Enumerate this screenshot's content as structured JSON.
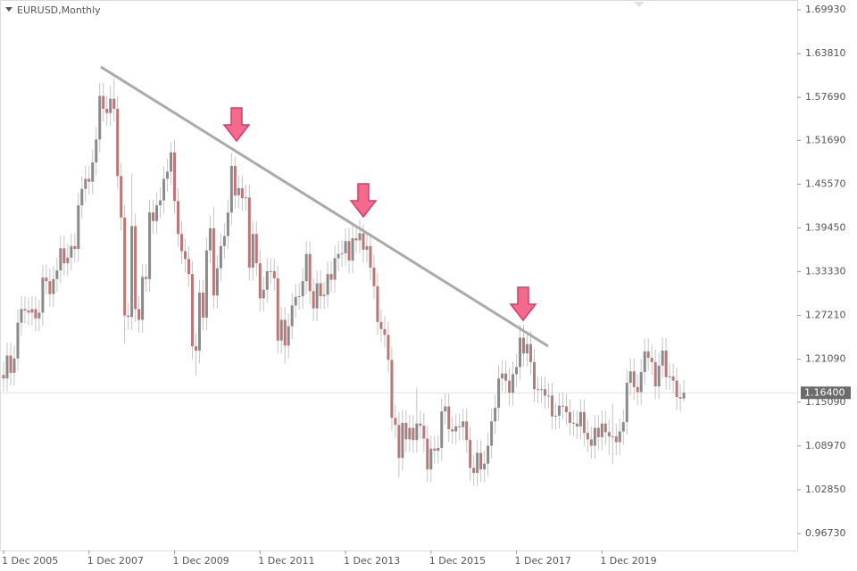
{
  "chart_data": {
    "type": "candlestick",
    "title": "EURUSD,Monthly",
    "up_color": "#8a8a8a",
    "down_color": "#c07575",
    "wick_color": "#c4c4c4",
    "ylim": [
      0.9436,
      1.713
    ],
    "yticks": [
      {
        "value": 1.6993,
        "label": "1.69930"
      },
      {
        "value": 1.6381,
        "label": "1.63810"
      },
      {
        "value": 1.5769,
        "label": "1.57690"
      },
      {
        "value": 1.5169,
        "label": "1.51690"
      },
      {
        "value": 1.4557,
        "label": "1.45570"
      },
      {
        "value": 1.3945,
        "label": "1.39450"
      },
      {
        "value": 1.3333,
        "label": "1.33330"
      },
      {
        "value": 1.2721,
        "label": "1.27210"
      },
      {
        "value": 1.2109,
        "label": "1.21090"
      },
      {
        "value": 1.1509,
        "label": "1.15090"
      },
      {
        "value": 1.0897,
        "label": "1.08970"
      },
      {
        "value": 1.0285,
        "label": "1.02850"
      },
      {
        "value": 0.9673,
        "label": "0.96730"
      }
    ],
    "last_price": {
      "value": 1.164,
      "label": "1.16400"
    },
    "categories": [
      "1 Dec 2005",
      null,
      null,
      null,
      null,
      null,
      null,
      null,
      null,
      null,
      null,
      null,
      null,
      null,
      null,
      null,
      null,
      null,
      null,
      null,
      null,
      null,
      null,
      null,
      "1 Dec 2007",
      null,
      null,
      null,
      null,
      null,
      null,
      null,
      null,
      null,
      null,
      null,
      null,
      null,
      null,
      null,
      null,
      null,
      null,
      null,
      null,
      null,
      null,
      null,
      "1 Dec 2009",
      null,
      null,
      null,
      null,
      null,
      null,
      null,
      null,
      null,
      null,
      null,
      null,
      null,
      null,
      null,
      null,
      null,
      null,
      null,
      null,
      null,
      null,
      null,
      "1 Dec 2011",
      null,
      null,
      null,
      null,
      null,
      null,
      null,
      null,
      null,
      null,
      null,
      null,
      null,
      null,
      null,
      null,
      null,
      null,
      null,
      null,
      null,
      null,
      null,
      "1 Dec 2013",
      null,
      null,
      null,
      null,
      null,
      null,
      null,
      null,
      null,
      null,
      null,
      null,
      null,
      null,
      null,
      null,
      null,
      null,
      null,
      null,
      null,
      null,
      null,
      "1 Dec 2015",
      null,
      null,
      null,
      null,
      null,
      null,
      null,
      null,
      null,
      null,
      null,
      null,
      null,
      null,
      null,
      null,
      null,
      null,
      null,
      null,
      null,
      null,
      null,
      "1 Dec 2017",
      null,
      null,
      null,
      null,
      null,
      null,
      null,
      null,
      null,
      null,
      null,
      null,
      null,
      null,
      null,
      null,
      null,
      null,
      null,
      null,
      null,
      null,
      null,
      "1 Dec 2019",
      null,
      null,
      null,
      null,
      null,
      null,
      null,
      null,
      null,
      null,
      null,
      null,
      null,
      null,
      null,
      null,
      null,
      null,
      null,
      null,
      null,
      null,
      null
    ],
    "ohlc": [
      [
        1.189,
        1.207,
        1.166,
        1.184
      ],
      [
        1.184,
        1.234,
        1.166,
        1.216
      ],
      [
        1.216,
        1.234,
        1.174,
        1.192
      ],
      [
        1.192,
        1.23,
        1.174,
        1.212
      ],
      [
        1.212,
        1.28,
        1.194,
        1.262
      ],
      [
        1.262,
        1.299,
        1.244,
        1.281
      ],
      [
        1.281,
        1.299,
        1.261,
        1.279
      ],
      [
        1.279,
        1.297,
        1.258,
        1.276
      ],
      [
        1.276,
        1.299,
        1.258,
        1.281
      ],
      [
        1.281,
        1.299,
        1.25,
        1.268
      ],
      [
        1.268,
        1.294,
        1.25,
        1.276
      ],
      [
        1.276,
        1.343,
        1.258,
        1.325
      ],
      [
        1.325,
        1.343,
        1.302,
        1.32
      ],
      [
        1.32,
        1.338,
        1.284,
        1.302
      ],
      [
        1.302,
        1.341,
        1.284,
        1.323
      ],
      [
        1.323,
        1.353,
        1.305,
        1.335
      ],
      [
        1.335,
        1.384,
        1.317,
        1.366
      ],
      [
        1.366,
        1.384,
        1.327,
        1.345
      ],
      [
        1.345,
        1.371,
        1.327,
        1.353
      ],
      [
        1.353,
        1.387,
        1.335,
        1.369
      ],
      [
        1.369,
        1.387,
        1.347,
        1.365
      ],
      [
        1.365,
        1.444,
        1.347,
        1.426
      ],
      [
        1.426,
        1.467,
        1.408,
        1.449
      ],
      [
        1.449,
        1.481,
        1.431,
        1.463
      ],
      [
        1.463,
        1.481,
        1.441,
        1.459
      ],
      [
        1.459,
        1.504,
        1.441,
        1.486
      ],
      [
        1.486,
        1.536,
        1.468,
        1.518
      ],
      [
        1.518,
        1.597,
        1.5,
        1.579
      ],
      [
        1.579,
        1.597,
        1.543,
        1.561
      ],
      [
        1.561,
        1.579,
        1.537,
        1.555
      ],
      [
        1.555,
        1.593,
        1.537,
        1.575
      ],
      [
        1.575,
        1.603,
        1.543,
        1.561
      ],
      [
        1.561,
        1.579,
        1.449,
        1.467
      ],
      [
        1.467,
        1.485,
        1.391,
        1.409
      ],
      [
        1.409,
        1.427,
        1.233,
        1.272
      ],
      [
        1.272,
        1.29,
        1.252,
        1.27
      ],
      [
        1.27,
        1.47,
        1.252,
        1.397
      ],
      [
        1.397,
        1.415,
        1.263,
        1.281
      ],
      [
        1.281,
        1.299,
        1.248,
        1.266
      ],
      [
        1.266,
        1.344,
        1.248,
        1.326
      ],
      [
        1.326,
        1.344,
        1.305,
        1.323
      ],
      [
        1.323,
        1.434,
        1.305,
        1.416
      ],
      [
        1.416,
        1.434,
        1.386,
        1.404
      ],
      [
        1.404,
        1.444,
        1.386,
        1.426
      ],
      [
        1.426,
        1.451,
        1.408,
        1.433
      ],
      [
        1.433,
        1.481,
        1.415,
        1.463
      ],
      [
        1.463,
        1.491,
        1.445,
        1.473
      ],
      [
        1.473,
        1.514,
        1.455,
        1.5
      ],
      [
        1.5,
        1.518,
        1.414,
        1.432
      ],
      [
        1.432,
        1.45,
        1.368,
        1.386
      ],
      [
        1.386,
        1.404,
        1.344,
        1.362
      ],
      [
        1.362,
        1.38,
        1.333,
        1.351
      ],
      [
        1.351,
        1.369,
        1.312,
        1.33
      ],
      [
        1.33,
        1.348,
        1.211,
        1.229
      ],
      [
        1.229,
        1.247,
        1.188,
        1.223
      ],
      [
        1.223,
        1.322,
        1.205,
        1.304
      ],
      [
        1.304,
        1.322,
        1.251,
        1.269
      ],
      [
        1.269,
        1.381,
        1.251,
        1.363
      ],
      [
        1.363,
        1.412,
        1.345,
        1.394
      ],
      [
        1.394,
        1.424,
        1.282,
        1.3
      ],
      [
        1.3,
        1.356,
        1.282,
        1.338
      ],
      [
        1.338,
        1.387,
        1.32,
        1.369
      ],
      [
        1.369,
        1.401,
        1.351,
        1.383
      ],
      [
        1.383,
        1.434,
        1.365,
        1.416
      ],
      [
        1.416,
        1.499,
        1.398,
        1.481
      ],
      [
        1.481,
        1.494,
        1.422,
        1.44
      ],
      [
        1.44,
        1.468,
        1.422,
        1.45
      ],
      [
        1.45,
        1.468,
        1.418,
        1.436
      ],
      [
        1.436,
        1.455,
        1.418,
        1.437
      ],
      [
        1.437,
        1.455,
        1.321,
        1.339
      ],
      [
        1.339,
        1.404,
        1.321,
        1.386
      ],
      [
        1.386,
        1.404,
        1.327,
        1.345
      ],
      [
        1.345,
        1.363,
        1.278,
        1.296
      ],
      [
        1.296,
        1.326,
        1.278,
        1.308
      ],
      [
        1.308,
        1.352,
        1.29,
        1.334
      ],
      [
        1.334,
        1.352,
        1.316,
        1.334
      ],
      [
        1.334,
        1.352,
        1.306,
        1.324
      ],
      [
        1.324,
        1.342,
        1.219,
        1.237
      ],
      [
        1.237,
        1.284,
        1.219,
        1.266
      ],
      [
        1.266,
        1.284,
        1.205,
        1.23
      ],
      [
        1.23,
        1.275,
        1.212,
        1.257
      ],
      [
        1.257,
        1.304,
        1.239,
        1.286
      ],
      [
        1.286,
        1.316,
        1.268,
        1.298
      ],
      [
        1.298,
        1.317,
        1.28,
        1.299
      ],
      [
        1.299,
        1.338,
        1.281,
        1.32
      ],
      [
        1.32,
        1.376,
        1.302,
        1.358
      ],
      [
        1.358,
        1.376,
        1.288,
        1.306
      ],
      [
        1.306,
        1.324,
        1.264,
        1.282
      ],
      [
        1.282,
        1.335,
        1.264,
        1.317
      ],
      [
        1.317,
        1.335,
        1.281,
        1.299
      ],
      [
        1.299,
        1.319,
        1.281,
        1.301
      ],
      [
        1.301,
        1.348,
        1.283,
        1.33
      ],
      [
        1.33,
        1.348,
        1.304,
        1.322
      ],
      [
        1.322,
        1.37,
        1.304,
        1.352
      ],
      [
        1.352,
        1.376,
        1.334,
        1.358
      ],
      [
        1.358,
        1.377,
        1.34,
        1.359
      ],
      [
        1.359,
        1.394,
        1.341,
        1.376
      ],
      [
        1.376,
        1.394,
        1.331,
        1.349
      ],
      [
        1.349,
        1.398,
        1.331,
        1.38
      ],
      [
        1.38,
        1.398,
        1.359,
        1.377
      ],
      [
        1.377,
        1.405,
        1.359,
        1.387
      ],
      [
        1.387,
        1.399,
        1.346,
        1.364
      ],
      [
        1.364,
        1.387,
        1.346,
        1.369
      ],
      [
        1.369,
        1.387,
        1.321,
        1.339
      ],
      [
        1.339,
        1.357,
        1.295,
        1.313
      ],
      [
        1.313,
        1.331,
        1.245,
        1.263
      ],
      [
        1.263,
        1.281,
        1.235,
        1.253
      ],
      [
        1.253,
        1.271,
        1.227,
        1.245
      ],
      [
        1.245,
        1.263,
        1.192,
        1.21
      ],
      [
        1.21,
        1.228,
        1.111,
        1.129
      ],
      [
        1.129,
        1.147,
        1.101,
        1.119
      ],
      [
        1.119,
        1.137,
        1.046,
        1.073
      ],
      [
        1.073,
        1.14,
        1.055,
        1.122
      ],
      [
        1.122,
        1.14,
        1.081,
        1.099
      ],
      [
        1.099,
        1.133,
        1.081,
        1.115
      ],
      [
        1.115,
        1.133,
        1.08,
        1.098
      ],
      [
        1.098,
        1.171,
        1.08,
        1.121
      ],
      [
        1.121,
        1.139,
        1.1,
        1.118
      ],
      [
        1.118,
        1.136,
        1.082,
        1.1
      ],
      [
        1.1,
        1.118,
        1.039,
        1.057
      ],
      [
        1.057,
        1.104,
        1.039,
        1.086
      ],
      [
        1.086,
        1.104,
        1.065,
        1.083
      ],
      [
        1.083,
        1.105,
        1.065,
        1.087
      ],
      [
        1.087,
        1.156,
        1.069,
        1.138
      ],
      [
        1.138,
        1.163,
        1.12,
        1.145
      ],
      [
        1.145,
        1.163,
        1.095,
        1.113
      ],
      [
        1.113,
        1.131,
        1.092,
        1.11
      ],
      [
        1.11,
        1.135,
        1.092,
        1.117
      ],
      [
        1.117,
        1.135,
        1.098,
        1.116
      ],
      [
        1.116,
        1.142,
        1.098,
        1.124
      ],
      [
        1.124,
        1.142,
        1.08,
        1.098
      ],
      [
        1.098,
        1.116,
        1.041,
        1.059
      ],
      [
        1.059,
        1.077,
        1.034,
        1.052
      ],
      [
        1.052,
        1.098,
        1.034,
        1.08
      ],
      [
        1.08,
        1.098,
        1.039,
        1.057
      ],
      [
        1.057,
        1.083,
        1.039,
        1.065
      ],
      [
        1.065,
        1.108,
        1.047,
        1.09
      ],
      [
        1.09,
        1.142,
        1.072,
        1.124
      ],
      [
        1.124,
        1.161,
        1.106,
        1.143
      ],
      [
        1.143,
        1.202,
        1.125,
        1.184
      ],
      [
        1.184,
        1.209,
        1.166,
        1.191
      ],
      [
        1.191,
        1.209,
        1.163,
        1.181
      ],
      [
        1.181,
        1.199,
        1.146,
        1.164
      ],
      [
        1.164,
        1.208,
        1.146,
        1.19
      ],
      [
        1.19,
        1.218,
        1.172,
        1.2
      ],
      [
        1.2,
        1.259,
        1.182,
        1.241
      ],
      [
        1.241,
        1.259,
        1.201,
        1.219
      ],
      [
        1.219,
        1.25,
        1.201,
        1.232
      ],
      [
        1.232,
        1.25,
        1.189,
        1.207
      ],
      [
        1.207,
        1.225,
        1.151,
        1.169
      ],
      [
        1.169,
        1.187,
        1.15,
        1.168
      ],
      [
        1.168,
        1.187,
        1.15,
        1.169
      ],
      [
        1.169,
        1.187,
        1.142,
        1.16
      ],
      [
        1.16,
        1.178,
        1.142,
        1.16
      ],
      [
        1.16,
        1.178,
        1.113,
        1.131
      ],
      [
        1.131,
        1.15,
        1.113,
        1.132
      ],
      [
        1.132,
        1.164,
        1.114,
        1.146
      ],
      [
        1.146,
        1.164,
        1.127,
        1.145
      ],
      [
        1.145,
        1.163,
        1.119,
        1.137
      ],
      [
        1.137,
        1.155,
        1.104,
        1.122
      ],
      [
        1.122,
        1.14,
        1.103,
        1.121
      ],
      [
        1.121,
        1.139,
        1.099,
        1.117
      ],
      [
        1.117,
        1.155,
        1.099,
        1.137
      ],
      [
        1.137,
        1.155,
        1.09,
        1.108
      ],
      [
        1.108,
        1.126,
        1.081,
        1.099
      ],
      [
        1.099,
        1.117,
        1.072,
        1.09
      ],
      [
        1.09,
        1.133,
        1.072,
        1.115
      ],
      [
        1.115,
        1.133,
        1.084,
        1.102
      ],
      [
        1.102,
        1.139,
        1.084,
        1.121
      ],
      [
        1.121,
        1.139,
        1.091,
        1.109
      ],
      [
        1.109,
        1.127,
        1.077,
        1.103
      ],
      [
        1.103,
        1.149,
        1.064,
        1.103
      ],
      [
        1.103,
        1.121,
        1.077,
        1.095
      ],
      [
        1.095,
        1.128,
        1.077,
        1.11
      ],
      [
        1.11,
        1.141,
        1.092,
        1.123
      ],
      [
        1.123,
        1.196,
        1.105,
        1.178
      ],
      [
        1.178,
        1.212,
        1.16,
        1.194
      ],
      [
        1.194,
        1.212,
        1.154,
        1.172
      ],
      [
        1.172,
        1.19,
        1.147,
        1.165
      ],
      [
        1.165,
        1.211,
        1.147,
        1.193
      ],
      [
        1.193,
        1.24,
        1.175,
        1.222
      ],
      [
        1.222,
        1.24,
        1.195,
        1.213
      ],
      [
        1.213,
        1.231,
        1.189,
        1.207
      ],
      [
        1.207,
        1.225,
        1.155,
        1.173
      ],
      [
        1.173,
        1.22,
        1.155,
        1.202
      ],
      [
        1.202,
        1.241,
        1.184,
        1.223
      ],
      [
        1.223,
        1.241,
        1.168,
        1.186
      ],
      [
        1.186,
        1.205,
        1.168,
        1.187
      ],
      [
        1.187,
        1.205,
        1.163,
        1.181
      ],
      [
        1.181,
        1.199,
        1.14,
        1.158
      ],
      [
        1.158,
        1.176,
        1.138,
        1.156
      ],
      [
        1.156,
        1.182,
        1.152,
        1.164
      ]
    ]
  }
}
